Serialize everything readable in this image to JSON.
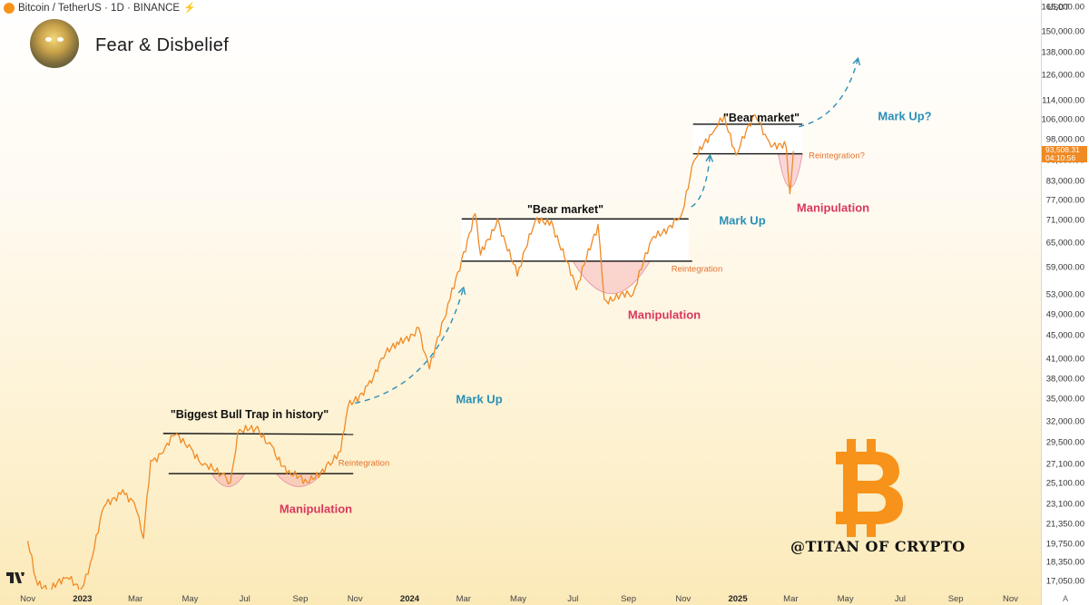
{
  "header": {
    "symbol": "Bitcoin / TetherUS · 1D · BINANCE"
  },
  "title": "Fear & Disbelief",
  "watermark": "@TITAN OF CRYPTO",
  "price_axis": {
    "unit": "USDT",
    "ticks": [
      "165,000.00",
      "150,000.00",
      "138,000.00",
      "126,000.00",
      "114,000.00",
      "106,000.00",
      "98,000.00",
      "90,000.00",
      "83,000.00",
      "77,000.00",
      "71,000.00",
      "65,000.00",
      "59,000.00",
      "53,000.00",
      "49,000.00",
      "45,000.00",
      "41,000.00",
      "38,000.00",
      "35,000.00",
      "32,000.00",
      "29,500.00",
      "27,100.00",
      "25,100.00",
      "23,100.00",
      "21,350.00",
      "19,750.00",
      "18,350.00",
      "17,050.00"
    ],
    "last_price": "93,508.31",
    "countdown": "04:10:56",
    "auto_label": "A"
  },
  "time_axis": {
    "ticks": [
      "Nov",
      "2023",
      "Mar",
      "May",
      "Jul",
      "Sep",
      "Nov",
      "2024",
      "Mar",
      "May",
      "Jul",
      "Sep",
      "Nov",
      "2025",
      "Mar",
      "May",
      "Jul",
      "Sep",
      "Nov"
    ]
  },
  "annotations": {
    "trap_title": "\"Biggest Bull Trap in history\"",
    "bear1": "\"Bear market\"",
    "bear2": "\"Bear market\"",
    "manip1": "Manipulation",
    "manip2": "Manipulation",
    "manip3": "Manipulation",
    "reint1": "Reintegration",
    "reint2": "Reintegration",
    "reint3": "Reintegration?",
    "markup1": "Mark Up",
    "markup2": "Mark Up",
    "markup3": "Mark Up?"
  },
  "colors": {
    "price_line": "#f08a24",
    "manipulation": "#d9385e",
    "markup_arrow": "#2a8fb7",
    "range_lines": "#111111",
    "bitcoin_logo": "#f7931a"
  },
  "chart_data": {
    "type": "line",
    "series": [
      {
        "points": [
          [
            "2022-11-01",
            20000
          ],
          [
            "2022-11-10",
            17200
          ],
          [
            "2022-11-25",
            16400
          ],
          [
            "2022-12-15",
            17300
          ],
          [
            "2022-12-31",
            16600
          ],
          [
            "2023-01-12",
            18800
          ],
          [
            "2023-01-25",
            22900
          ],
          [
            "2023-02-15",
            24500
          ],
          [
            "2023-02-28",
            23200
          ],
          [
            "2023-03-10",
            20200
          ],
          [
            "2023-03-18",
            27500
          ],
          [
            "2023-04-01",
            28400
          ],
          [
            "2023-04-14",
            30400
          ],
          [
            "2023-04-30",
            29300
          ],
          [
            "2023-05-15",
            27000
          ],
          [
            "2023-06-05",
            26000
          ],
          [
            "2023-06-15",
            25200
          ],
          [
            "2023-06-23",
            30600
          ],
          [
            "2023-07-13",
            31200
          ],
          [
            "2023-07-31",
            29200
          ],
          [
            "2023-08-17",
            26100
          ],
          [
            "2023-09-11",
            25200
          ],
          [
            "2023-09-30",
            27000
          ],
          [
            "2023-10-16",
            28500
          ],
          [
            "2023-10-24",
            33900
          ],
          [
            "2023-11-15",
            37000
          ],
          [
            "2023-12-05",
            42000
          ],
          [
            "2023-12-20",
            43500
          ],
          [
            "2024-01-11",
            46500
          ],
          [
            "2024-01-23",
            39500
          ],
          [
            "2024-02-15",
            52000
          ],
          [
            "2024-02-28",
            61000
          ],
          [
            "2024-03-14",
            73000
          ],
          [
            "2024-03-20",
            62000
          ],
          [
            "2024-04-08",
            71500
          ],
          [
            "2024-04-30",
            57000
          ],
          [
            "2024-05-20",
            71000
          ],
          [
            "2024-06-07",
            71000
          ],
          [
            "2024-07-05",
            54000
          ],
          [
            "2024-07-29",
            70000
          ],
          [
            "2024-08-05",
            52000
          ],
          [
            "2024-09-06",
            53000
          ],
          [
            "2024-09-27",
            66000
          ],
          [
            "2024-10-29",
            72000
          ],
          [
            "2024-11-13",
            90000
          ],
          [
            "2024-12-05",
            101000
          ],
          [
            "2024-12-17",
            108000
          ],
          [
            "2024-12-30",
            92000
          ],
          [
            "2025-01-20",
            108000
          ],
          [
            "2025-02-05",
            97000
          ],
          [
            "2025-02-24",
            95000
          ],
          [
            "2025-02-28",
            79000
          ],
          [
            "2025-03-04",
            93508
          ]
        ]
      }
    ],
    "projections": [
      {
        "label": "Mark Up",
        "points": [
          [
            "2023-11-01",
            34500
          ],
          [
            "2024-03-01",
            54500
          ]
        ]
      },
      {
        "label": "Mark Up",
        "points": [
          [
            "2024-11-10",
            75000
          ],
          [
            "2024-12-01",
            92000
          ]
        ]
      },
      {
        "label": "Mark Up?",
        "points": [
          [
            "2025-03-10",
            103000
          ],
          [
            "2025-05-15",
            135000
          ]
        ]
      }
    ],
    "ranges": [
      {
        "label": "\"Biggest Bull Trap in history\"",
        "top": 30600,
        "bottom": 26100
      },
      {
        "label": "\"Bear market\"",
        "top": 71500,
        "bottom": 60500
      },
      {
        "label": "\"Bear market\"",
        "top": 104000,
        "bottom": 92500
      }
    ],
    "ylabel": "USDT",
    "yscale": "log",
    "ylim": [
      16500,
      170000
    ],
    "xlim": [
      "2022-10-01",
      "2025-12-05"
    ],
    "grid": false
  }
}
